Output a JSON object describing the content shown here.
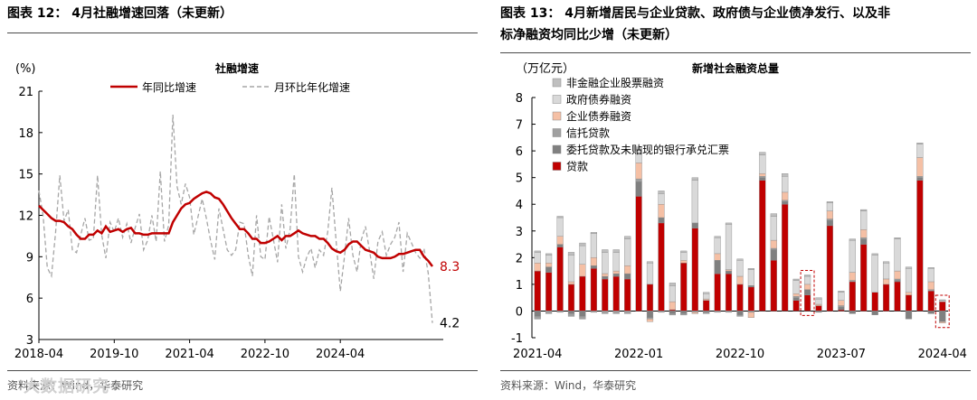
{
  "left": {
    "title": "图表 12：  4月社融增速回落（未更新）",
    "source": "资料来源：Wind，华泰研究",
    "watermark": "大数据研究"
  },
  "right": {
    "title_line1": "图表 13：  4月新增居民与企业贷款、政府债与企业债净发行、以及非",
    "title_line2": "标净融资均同比少增（未更新）",
    "source": "资料来源：Wind，华泰研究"
  },
  "colors": {
    "red": "#c00000",
    "dashed": "#a6a6a6",
    "loan": "#c00000",
    "entrusted": "#808080",
    "trust": "#a0a0a0",
    "corp_bond": "#f5c0a5",
    "gov_bond": "#d9d9d9",
    "equity": "#bfbfbf"
  },
  "chart_data": [
    {
      "type": "line",
      "title": "社融增速",
      "ylabel": "(%)",
      "ylim": [
        3,
        21
      ],
      "yticks": [
        3,
        6,
        9,
        12,
        15,
        18,
        21
      ],
      "x_tick_labels": [
        "2018-04",
        "2019-10",
        "2021-04",
        "2022-10",
        "2024-04"
      ],
      "x_tick_index": [
        0,
        18,
        36,
        54,
        72
      ],
      "end_labels": {
        "yoy": "8.3",
        "mom": "4.2"
      },
      "series": [
        {
          "name": "年同比增速",
          "values": [
            12.7,
            12.4,
            12.1,
            11.8,
            11.6,
            11.6,
            11.5,
            11.2,
            11.0,
            10.6,
            10.3,
            10.3,
            10.6,
            10.6,
            10.9,
            10.7,
            11.2,
            10.8,
            10.9,
            11.0,
            10.8,
            11.0,
            11.1,
            10.7,
            10.7,
            10.6,
            10.6,
            10.7,
            10.7,
            10.7,
            10.7,
            10.7,
            11.5,
            12.0,
            12.5,
            12.8,
            12.9,
            13.2,
            13.4,
            13.6,
            13.7,
            13.6,
            13.3,
            13.2,
            12.8,
            12.3,
            11.8,
            11.4,
            11.0,
            11.0,
            10.7,
            10.3,
            10.3,
            10.0,
            10.0,
            10.1,
            10.3,
            10.5,
            10.2,
            10.5,
            10.5,
            10.7,
            10.9,
            10.7,
            10.6,
            10.5,
            10.5,
            10.3,
            10.3,
            10.0,
            9.6,
            9.4,
            9.3,
            9.5,
            9.9,
            10.1,
            10.1,
            9.8,
            9.5,
            9.4,
            9.3,
            9.0,
            8.9,
            8.9,
            8.9,
            9.0,
            9.2,
            9.2,
            9.3,
            9.4,
            9.5,
            9.5,
            9.0,
            8.7,
            8.3
          ]
        },
        {
          "name": "月环比年化增速",
          "values": [
            13.8,
            12.0,
            8.2,
            7.6,
            10.8,
            14.9,
            11.6,
            12.4,
            9.5,
            9.3,
            10.6,
            11.8,
            10.2,
            10.3,
            14.9,
            10.6,
            8.9,
            11.5,
            10.8,
            11.8,
            10.4,
            11.4,
            10.0,
            11.1,
            12.1,
            9.5,
            10.2,
            12.0,
            10.1,
            15.2,
            10.1,
            11.3,
            19.3,
            14.1,
            12.8,
            14.3,
            13.3,
            10.6,
            11.9,
            13.2,
            11.8,
            10.2,
            8.8,
            12.5,
            11.0,
            9.5,
            9.1,
            9.5,
            11.5,
            11.4,
            9.1,
            7.6,
            12.0,
            9.0,
            8.8,
            11.9,
            10.3,
            8.6,
            12.8,
            9.6,
            11.0,
            15.0,
            9.0,
            7.9,
            9.0,
            9.6,
            8.2,
            9.5,
            9.1,
            10.8,
            14.0,
            10.1,
            6.5,
            9.0,
            11.8,
            9.1,
            7.9,
            10.2,
            11.2,
            9.4,
            7.4,
            10.1,
            10.8,
            9.1,
            9.9,
            10.4,
            11.5,
            7.9,
            10.7,
            10.0,
            9.3,
            8.9,
            9.6,
            7.8,
            4.2
          ]
        }
      ]
    },
    {
      "type": "bar",
      "stacked": true,
      "title": "新增社会融资总量",
      "ylabel": "（万亿元）",
      "ylim": [
        -1,
        8
      ],
      "yticks": [
        -1,
        0,
        1,
        2,
        3,
        4,
        5,
        6,
        7,
        8
      ],
      "x_tick_labels": [
        "2021-04",
        "2022-01",
        "2022-10",
        "2023-07",
        "2024-04"
      ],
      "x_tick_index": [
        0,
        9,
        18,
        27,
        36
      ],
      "highlight_index": [
        24,
        36
      ],
      "legend": [
        "非金融企业股票融资",
        "政府债券融资",
        "企业债券融资",
        "信托贷款",
        "委托贷款及未贴现的银行承兑汇票",
        "贷款"
      ],
      "series": [
        {
          "name": "贷款",
          "values": [
            1.5,
            1.45,
            2.4,
            1.0,
            1.3,
            1.6,
            1.2,
            1.3,
            1.2,
            4.3,
            1.0,
            3.3,
            0.05,
            1.8,
            3.1,
            0.4,
            1.4,
            1.4,
            1.0,
            0.9,
            4.9,
            1.9,
            4.0,
            0.4,
            0.6,
            0.2,
            3.2,
            0.05,
            1.1,
            2.5,
            0.7,
            1.0,
            1.1,
            0.6,
            4.9,
            0.75,
            0.35
          ]
        },
        {
          "name": "委托贷款及未贴现的银行承兑汇票",
          "values": [
            -0.2,
            0.2,
            0.1,
            -0.1,
            -0.2,
            0.1,
            0.1,
            0.1,
            0.2,
            0.55,
            -0.25,
            0.2,
            -0.1,
            -0.1,
            0.2,
            -0.05,
            0.5,
            0.1,
            -0.15,
            0.05,
            0.1,
            0.4,
            0.1,
            0.1,
            0.2,
            -0.05,
            0.2,
            0.1,
            -0.1,
            0.2,
            -0.15,
            0.0,
            0.05,
            -0.3,
            0.1,
            -0.1,
            -0.4
          ]
        },
        {
          "name": "信托贷款",
          "values": [
            -0.1,
            -0.1,
            -0.05,
            -0.1,
            -0.1,
            -0.05,
            -0.1,
            -0.1,
            -0.1,
            0.1,
            -0.05,
            -0.05,
            -0.05,
            -0.05,
            -0.05,
            -0.05,
            -0.05,
            -0.05,
            -0.05,
            -0.05,
            0.05,
            0.05,
            0.05,
            0.05,
            0.0,
            0.0,
            0.05,
            0.05,
            0.05,
            0.05,
            0.0,
            0.0,
            0.05,
            0.0,
            0.05,
            0.05,
            0.0
          ]
        },
        {
          "name": "企业债券融资",
          "values": [
            0.3,
            0.15,
            0.3,
            0.1,
            0.45,
            0.3,
            0.1,
            0.1,
            0.3,
            0.6,
            -0.1,
            0.5,
            0.3,
            0.1,
            -0.05,
            0.05,
            0.25,
            0.05,
            0.3,
            -0.2,
            0.1,
            0.3,
            0.3,
            0.1,
            0.2,
            0.05,
            0.3,
            0.2,
            0.3,
            0.3,
            0.0,
            0.2,
            0.3,
            0.1,
            0.7,
            0.3,
            -0.05
          ]
        },
        {
          "name": "政府债券融资",
          "values": [
            0.4,
            0.3,
            0.7,
            1.0,
            0.7,
            0.9,
            0.8,
            0.7,
            1.0,
            0.5,
            0.8,
            0.4,
            0.6,
            0.3,
            1.6,
            0.2,
            0.6,
            1.7,
            0.6,
            0.6,
            0.7,
            0.9,
            0.6,
            0.5,
            0.3,
            0.2,
            0.3,
            0.3,
            1.2,
            0.7,
            1.4,
            0.6,
            1.2,
            0.9,
            0.5,
            0.5,
            0.05
          ]
        },
        {
          "name": "非金融企业股票融资",
          "values": [
            0.05,
            0.05,
            0.05,
            0.1,
            0.1,
            0.05,
            0.1,
            0.1,
            0.1,
            0.1,
            0.05,
            0.1,
            0.1,
            0.05,
            0.1,
            0.05,
            0.05,
            0.05,
            0.05,
            0.05,
            0.1,
            0.1,
            0.1,
            0.05,
            0.05,
            0.05,
            0.05,
            0.05,
            0.05,
            0.05,
            0.05,
            0.05,
            0.05,
            0.05,
            0.05,
            0.03,
            0.02
          ]
        }
      ]
    }
  ]
}
